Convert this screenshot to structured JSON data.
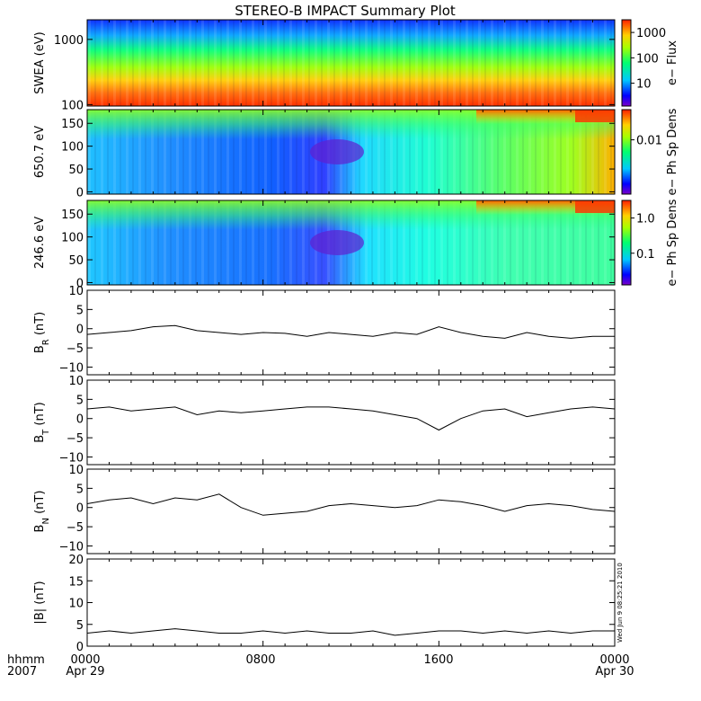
{
  "title": "STEREO-B IMPACT Summary Plot",
  "footer": {
    "unit_label": "hhmm",
    "year": "2007",
    "ticks": [
      "0000",
      "0800",
      "1600",
      "0000"
    ],
    "dates": [
      "Apr 29",
      "",
      "",
      "Apr 30"
    ]
  },
  "timestamp": "Wed Jun  9 08:25:21 2010",
  "colors": {
    "line": "#000000",
    "frame": "#000000"
  },
  "chart_data": [
    {
      "type": "heatmap",
      "ylabel": "SWEA (eV)",
      "yscale": "log",
      "ylim": [
        95,
        2000
      ],
      "yticks": [
        100,
        1000
      ],
      "yticklabels": [
        "100",
        "1000"
      ],
      "colorbar": {
        "label": "e− Flux",
        "scale": "log",
        "ticks": [
          10,
          100,
          1000
        ],
        "ticklabels": [
          "10",
          "100",
          "1000"
        ]
      }
    },
    {
      "type": "heatmap",
      "ylabel": "650.7 eV",
      "ylim": [
        -5,
        180
      ],
      "yticks": [
        0,
        50,
        100,
        150
      ],
      "yticklabels": [
        "0",
        "50",
        "100",
        "150"
      ],
      "colorbar": {
        "label": "e− Ph Sp Dens",
        "scale": "log",
        "ticks": [
          0.01
        ],
        "ticklabels": [
          "0.01"
        ]
      }
    },
    {
      "type": "heatmap",
      "ylabel": "246.6 eV",
      "ylim": [
        -5,
        180
      ],
      "yticks": [
        0,
        50,
        100,
        150
      ],
      "yticklabels": [
        "0",
        "50",
        "100",
        "150"
      ],
      "colorbar": {
        "label": "e− Ph Sp Dens",
        "scale": "log",
        "ticks": [
          0.1,
          1.0
        ],
        "ticklabels": [
          "0.1",
          "1.0"
        ]
      }
    },
    {
      "type": "line",
      "ylabel": "B",
      "ylabel_sub": "R",
      "ylabel_unit": " (nT)",
      "ylim": [
        -12,
        10
      ],
      "yticks": [
        -10,
        -5,
        0,
        5,
        10
      ],
      "yticklabels": [
        "−10",
        "−5",
        "0",
        "5",
        "10"
      ],
      "x": [
        0,
        1,
        2,
        3,
        4,
        5,
        6,
        7,
        8,
        9,
        10,
        11,
        12,
        13,
        14,
        15,
        16,
        17,
        18,
        19,
        20,
        21,
        22,
        23,
        24
      ],
      "values": [
        -1.5,
        -1.0,
        -0.5,
        0.5,
        0.8,
        -0.5,
        -1.0,
        -1.5,
        -1.0,
        -1.2,
        -2.0,
        -1.0,
        -1.5,
        -2.0,
        -1.0,
        -1.5,
        0.5,
        -1.0,
        -2.0,
        -2.5,
        -1.0,
        -2.0,
        -2.5,
        -2.0,
        -2.0
      ]
    },
    {
      "type": "line",
      "ylabel": "B",
      "ylabel_sub": "T",
      "ylabel_unit": " (nT)",
      "ylim": [
        -12,
        10
      ],
      "yticks": [
        -10,
        -5,
        0,
        5,
        10
      ],
      "yticklabels": [
        "−10",
        "−5",
        "0",
        "5",
        "10"
      ],
      "x": [
        0,
        1,
        2,
        3,
        4,
        5,
        6,
        7,
        8,
        9,
        10,
        11,
        12,
        13,
        14,
        15,
        16,
        17,
        18,
        19,
        20,
        21,
        22,
        23,
        24
      ],
      "values": [
        2.5,
        3.0,
        2.0,
        2.5,
        3.0,
        1.0,
        2.0,
        1.5,
        2.0,
        2.5,
        3.0,
        3.0,
        2.5,
        2.0,
        1.0,
        0.0,
        -3.0,
        0.0,
        2.0,
        2.5,
        0.5,
        1.5,
        2.5,
        3.0,
        2.5
      ]
    },
    {
      "type": "line",
      "ylabel": "B",
      "ylabel_sub": "N",
      "ylabel_unit": " (nT)",
      "ylim": [
        -12,
        10
      ],
      "yticks": [
        -10,
        -5,
        0,
        5,
        10
      ],
      "yticklabels": [
        "−10",
        "−5",
        "0",
        "5",
        "10"
      ],
      "x": [
        0,
        1,
        2,
        3,
        4,
        5,
        6,
        7,
        8,
        9,
        10,
        11,
        12,
        13,
        14,
        15,
        16,
        17,
        18,
        19,
        20,
        21,
        22,
        23,
        24
      ],
      "values": [
        1.0,
        2.0,
        2.5,
        1.0,
        2.5,
        2.0,
        3.5,
        0.0,
        -2.0,
        -1.5,
        -1.0,
        0.5,
        1.0,
        0.5,
        0.0,
        0.5,
        2.0,
        1.5,
        0.5,
        -1.0,
        0.5,
        1.0,
        0.5,
        -0.5,
        -1.0
      ]
    },
    {
      "type": "line",
      "ylabel": "|B| (nT)",
      "ylim": [
        0,
        20
      ],
      "yticks": [
        0,
        5,
        10,
        15,
        20
      ],
      "yticklabels": [
        "0",
        "5",
        "10",
        "15",
        "20"
      ],
      "x": [
        0,
        1,
        2,
        3,
        4,
        5,
        6,
        7,
        8,
        9,
        10,
        11,
        12,
        13,
        14,
        15,
        16,
        17,
        18,
        19,
        20,
        21,
        22,
        23,
        24
      ],
      "values": [
        3.0,
        3.5,
        3.0,
        3.5,
        4.0,
        3.5,
        3.0,
        3.0,
        3.5,
        3.0,
        3.5,
        3.0,
        3.0,
        3.5,
        2.5,
        3.0,
        3.5,
        3.5,
        3.0,
        3.5,
        3.0,
        3.5,
        3.0,
        3.5,
        3.5
      ]
    }
  ]
}
